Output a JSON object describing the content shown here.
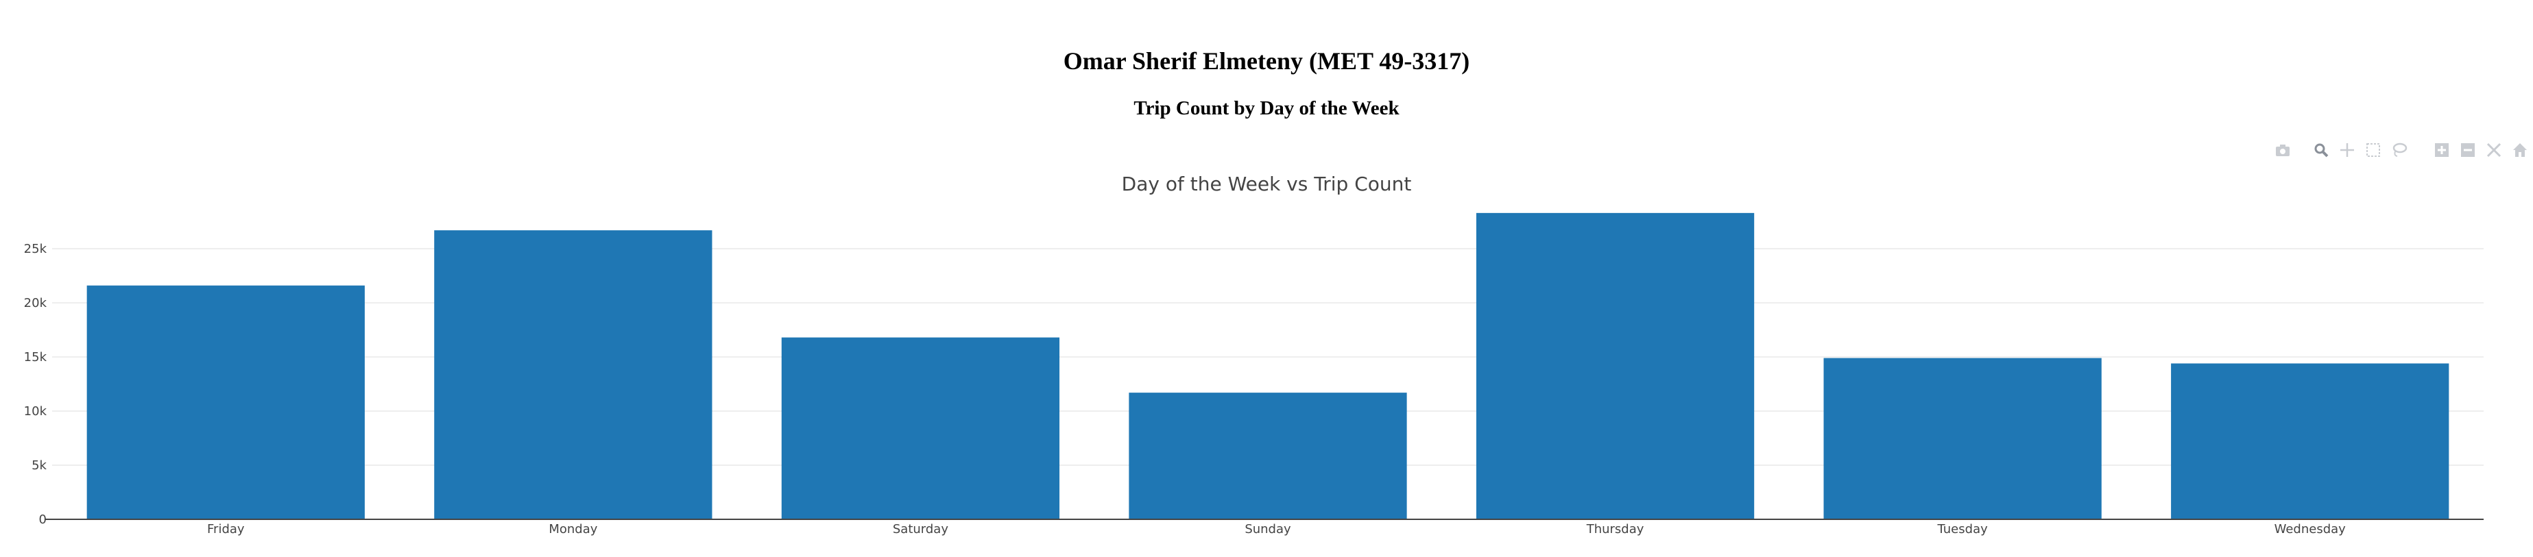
{
  "header": {
    "title": "Omar Sherif Elmeteny (MET 49-3317)",
    "subtitle": "Trip Count by Day of the Week"
  },
  "modebar": {
    "buttons": [
      {
        "icon": "camera-icon",
        "name": "download-png-button"
      },
      {
        "icon": "zoom-icon",
        "name": "zoom-button"
      },
      {
        "icon": "pan-icon",
        "name": "pan-button"
      },
      {
        "icon": "box-select-icon",
        "name": "box-select-button"
      },
      {
        "icon": "lasso-icon",
        "name": "lasso-select-button"
      },
      {
        "icon": "zoom-in-icon",
        "name": "zoom-in-button"
      },
      {
        "icon": "zoom-out-icon",
        "name": "zoom-out-button"
      },
      {
        "icon": "autoscale-icon",
        "name": "autoscale-button"
      },
      {
        "icon": "home-icon",
        "name": "reset-axes-button"
      }
    ]
  },
  "chart_data": {
    "type": "bar",
    "title": "Day of the Week vs Trip Count",
    "categories": [
      "Friday",
      "Monday",
      "Saturday",
      "Sunday",
      "Thursday",
      "Tuesday",
      "Wednesday"
    ],
    "values": [
      21600,
      26700,
      16800,
      11700,
      28300,
      14900,
      14400
    ],
    "xlabel": "",
    "ylabel": "",
    "ylim": [
      0,
      30000
    ],
    "yticks": [
      0,
      5000,
      10000,
      15000,
      20000,
      25000
    ],
    "ytick_labels": [
      "0",
      "5k",
      "10k",
      "15k",
      "20k",
      "25k"
    ],
    "bar_color": "#1f77b4",
    "grid": true,
    "legend": "none"
  }
}
